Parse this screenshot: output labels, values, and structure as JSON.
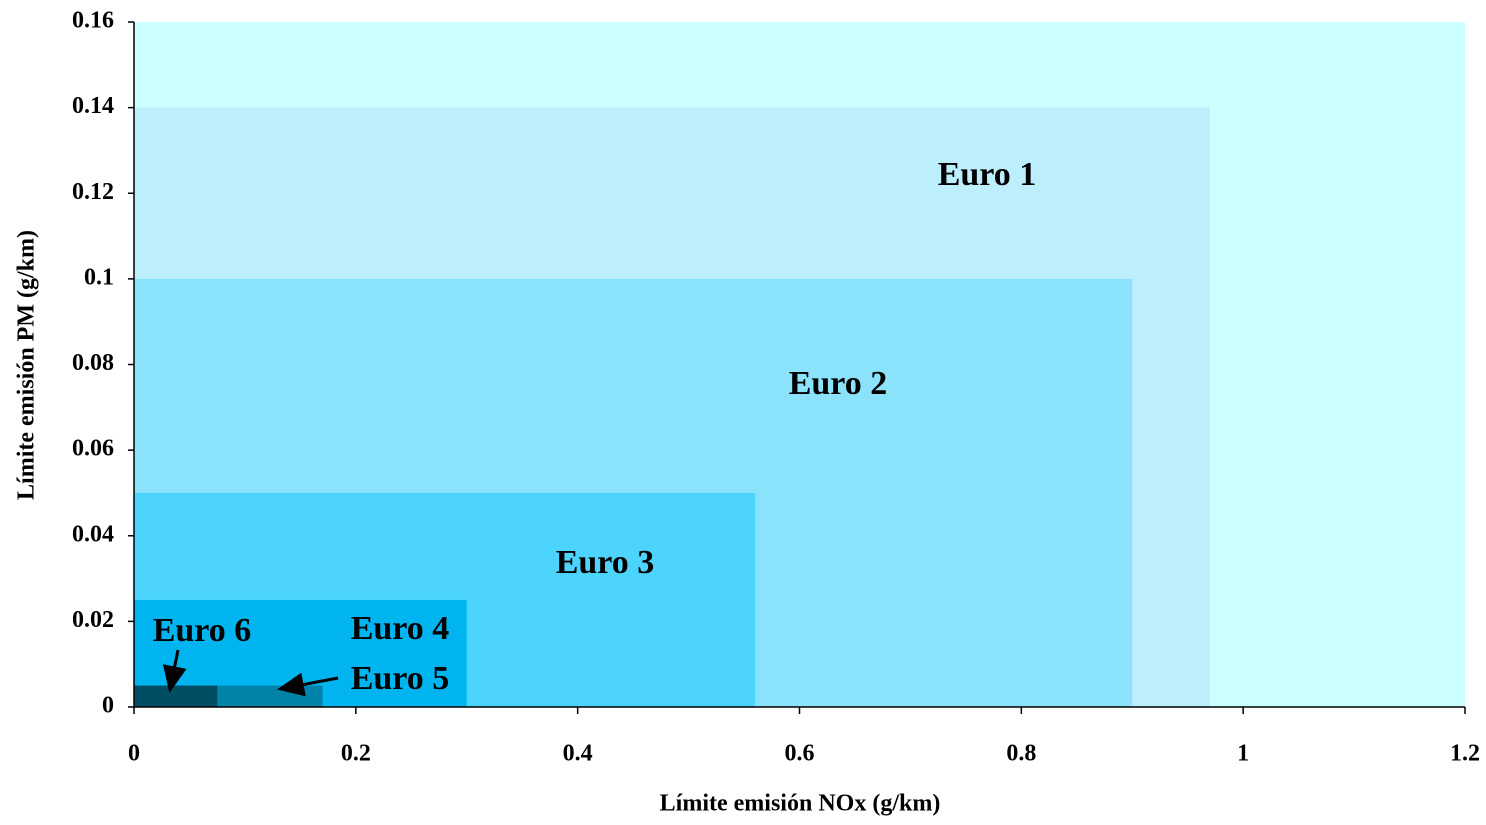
{
  "chart_data": {
    "type": "rectangles",
    "xlabel": "Límite emisión NOx (g/km)",
    "ylabel": "Límite emisión PM (g/km)",
    "xlim": [
      0,
      1.2
    ],
    "xticks": [
      0,
      0.2,
      0.4,
      0.6,
      0.8,
      1,
      1.2
    ],
    "ylim": [
      0,
      0.16
    ],
    "yticks": [
      0,
      0.02,
      0.04,
      0.06,
      0.08,
      0.1,
      0.12,
      0.14,
      0.16
    ],
    "background": "#ccffff",
    "series": [
      {
        "name": "Euro 1",
        "color": "#bdeefb",
        "x": 0.97,
        "y": 0.14
      },
      {
        "name": "Euro 2",
        "color": "#8be3fb",
        "x": 0.9,
        "y": 0.1
      },
      {
        "name": "Euro 3",
        "color": "#4cd4fc",
        "x": 0.56,
        "y": 0.05
      },
      {
        "name": "Euro 4",
        "color": "#00b5ef",
        "x": 0.3,
        "y": 0.025
      },
      {
        "name": "Euro 5",
        "color": "#0083a9",
        "x": 0.17,
        "y": 0.005
      },
      {
        "name": "Euro 6",
        "color": "#004e64",
        "x": 0.075,
        "y": 0.005
      }
    ]
  }
}
